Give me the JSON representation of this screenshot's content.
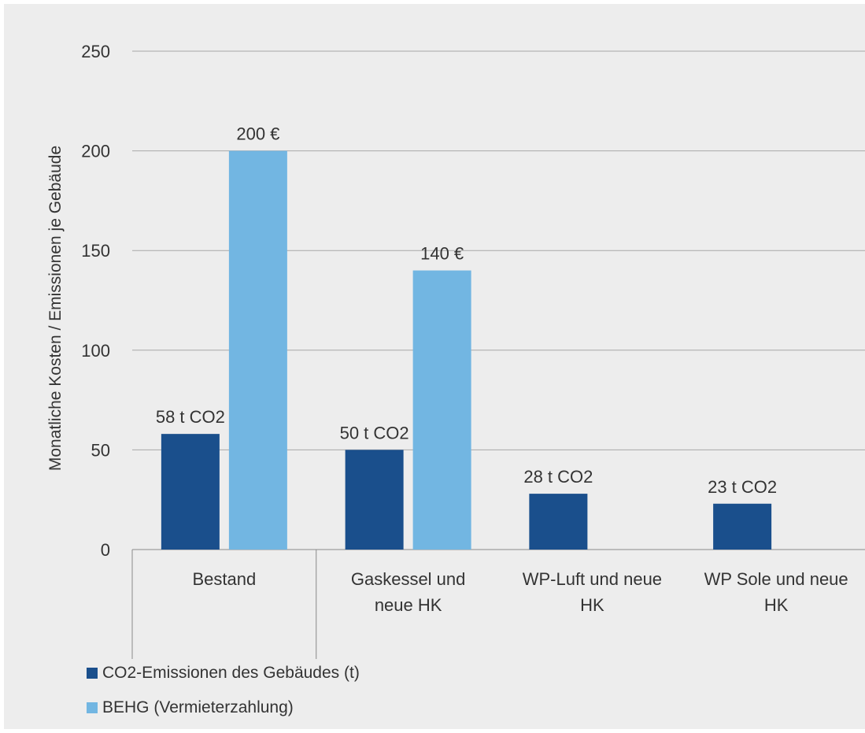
{
  "chart_data": {
    "type": "bar",
    "title": "",
    "xlabel": "",
    "ylabel": "Monatliche Kosten / Emissionen je Gebäude",
    "ylim": [
      0,
      250
    ],
    "yticks": [
      0,
      50,
      100,
      150,
      200,
      250
    ],
    "grid": true,
    "legend_position": "bottom-left",
    "categories": [
      [
        "Bestand"
      ],
      [
        "Gaskessel und",
        "neue HK"
      ],
      [
        "WP-Luft und neue",
        "HK"
      ],
      [
        "WP Sole und neue",
        "HK"
      ]
    ],
    "series": [
      {
        "name": "CO2-Emissionen des Gebäudes (t)",
        "color": "#1a4f8c",
        "values": [
          58,
          50,
          28,
          23
        ],
        "labels": [
          "58 t CO2",
          "50 t CO2",
          "28 t CO2",
          "23 t CO2"
        ]
      },
      {
        "name": "BEHG (Vermieterzahlung)",
        "color": "#72b6e2",
        "values": [
          200,
          140,
          null,
          null
        ],
        "labels": [
          "200 €",
          "140 €",
          null,
          null
        ]
      }
    ]
  }
}
